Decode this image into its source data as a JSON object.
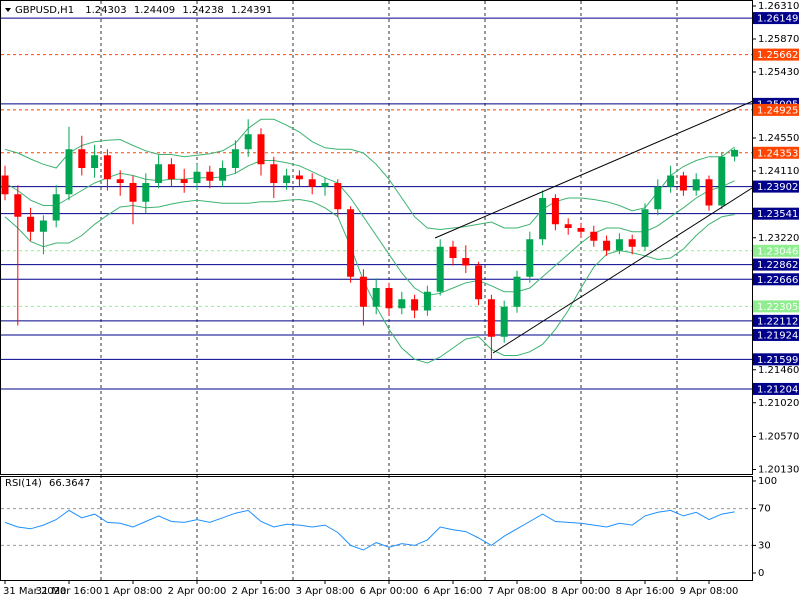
{
  "chart_data": [
    {
      "type": "candlestick",
      "title": "GBPUSD,H1",
      "categories": [
        "31 Mar 2020",
        null,
        null,
        null,
        null,
        "31 Mar 16:00",
        null,
        null,
        null,
        null,
        "1 Apr 08:00",
        null,
        null,
        null,
        null,
        "2 Apr 00:00",
        null,
        null,
        null,
        null,
        "2 Apr 16:00",
        null,
        null,
        null,
        null,
        "3 Apr 08:00",
        null,
        null,
        null,
        null,
        "6 Apr 00:00",
        null,
        null,
        null,
        null,
        "6 Apr 16:00",
        null,
        null,
        null,
        null,
        "7 Apr 08:00",
        null,
        null,
        null,
        null,
        "8 Apr 00:00",
        null,
        null,
        null,
        null,
        "8 Apr 16:00",
        null,
        null,
        null,
        null,
        "9 Apr 08:00",
        null,
        null
      ],
      "open": [
        1.2405,
        1.238,
        1.235,
        1.233,
        1.2345,
        1.238,
        1.244,
        1.2415,
        1.2432,
        1.24,
        1.2395,
        1.237,
        1.2395,
        1.242,
        1.24,
        1.2395,
        1.241,
        1.2398,
        1.2415,
        1.244,
        1.246,
        1.242,
        1.2395,
        1.2405,
        1.24,
        1.239,
        1.2395,
        1.236,
        1.227,
        1.223,
        1.2255,
        1.2228,
        1.224,
        1.2225,
        1.225,
        1.231,
        1.2295,
        1.2285,
        1.224,
        1.219,
        1.223,
        1.227,
        1.232,
        1.2375,
        1.234,
        1.2335,
        1.233,
        1.2318,
        1.2305,
        1.232,
        1.231,
        1.236,
        1.239,
        1.2405,
        1.2385,
        1.24,
        1.2365,
        1.24303
      ],
      "high": [
        1.2418,
        1.2392,
        1.2362,
        1.2352,
        1.2392,
        1.247,
        1.2458,
        1.2446,
        1.244,
        1.2412,
        1.2405,
        1.2408,
        1.2432,
        1.2428,
        1.2414,
        1.242,
        1.2418,
        1.2425,
        1.2452,
        1.248,
        1.2468,
        1.243,
        1.2414,
        1.2412,
        1.2408,
        1.2402,
        1.24,
        1.2364,
        1.228,
        1.2268,
        1.2262,
        1.225,
        1.2246,
        1.2258,
        1.232,
        1.2318,
        1.2312,
        1.229,
        1.2246,
        1.2238,
        1.2278,
        1.233,
        1.2385,
        1.238,
        1.2348,
        1.2342,
        1.2338,
        1.2325,
        1.2328,
        1.2326,
        1.2368,
        1.24,
        1.2418,
        1.241,
        1.2408,
        1.2405,
        1.2436,
        1.24409
      ],
      "low": [
        1.2372,
        1.2205,
        1.2318,
        1.23,
        1.2336,
        1.2372,
        1.2405,
        1.2402,
        1.2385,
        1.2378,
        1.234,
        1.2355,
        1.2388,
        1.239,
        1.2382,
        1.2386,
        1.2388,
        1.239,
        1.2408,
        1.243,
        1.2405,
        1.2375,
        1.2386,
        1.239,
        1.238,
        1.2378,
        1.235,
        1.2262,
        1.2205,
        1.222,
        1.2218,
        1.222,
        1.2215,
        1.2218,
        1.2245,
        1.2285,
        1.2275,
        1.2232,
        1.216,
        1.2182,
        1.2222,
        1.2262,
        1.2312,
        1.2332,
        1.2326,
        1.2322,
        1.231,
        1.2298,
        1.23,
        1.23,
        1.2305,
        1.2352,
        1.2382,
        1.2378,
        1.2378,
        1.2358,
        1.236,
        1.24238
      ],
      "close": [
        1.238,
        1.235,
        1.233,
        1.2345,
        1.238,
        1.244,
        1.2415,
        1.2432,
        1.24,
        1.2395,
        1.237,
        1.2395,
        1.242,
        1.24,
        1.2395,
        1.241,
        1.2398,
        1.2415,
        1.244,
        1.246,
        1.242,
        1.2395,
        1.2405,
        1.24,
        1.239,
        1.2395,
        1.236,
        1.227,
        1.223,
        1.2255,
        1.2228,
        1.224,
        1.2225,
        1.225,
        1.231,
        1.2295,
        1.2285,
        1.224,
        1.219,
        1.223,
        1.227,
        1.232,
        1.2375,
        1.234,
        1.2335,
        1.233,
        1.2318,
        1.2305,
        1.232,
        1.231,
        1.236,
        1.239,
        1.2405,
        1.2385,
        1.24,
        1.2365,
        1.243,
        1.24391
      ],
      "up_color": "#00a651",
      "down_color": "#ff0000",
      "bands": {
        "color": "#3cb371",
        "upper": [
          1.244,
          1.2435,
          1.2427,
          1.242,
          1.2415,
          1.2435,
          1.2445,
          1.245,
          1.2452,
          1.2453,
          1.2445,
          1.2438,
          1.2433,
          1.2433,
          1.243,
          1.2432,
          1.2434,
          1.2438,
          1.2448,
          1.2468,
          1.248,
          1.248,
          1.2472,
          1.2463,
          1.245,
          1.2442,
          1.244,
          1.244,
          1.2435,
          1.242,
          1.24,
          1.2375,
          1.235,
          1.2335,
          1.2333,
          1.2335,
          1.2337,
          1.234,
          1.2343,
          1.2335,
          1.2335,
          1.234,
          1.236,
          1.237,
          1.2375,
          1.2375,
          1.2373,
          1.237,
          1.2365,
          1.2358,
          1.2362,
          1.2383,
          1.2405,
          1.2417,
          1.2425,
          1.243,
          1.243,
          1.2443
        ],
        "middle": [
          1.2395,
          1.2385,
          1.2372,
          1.2365,
          1.2365,
          1.2375,
          1.2385,
          1.2395,
          1.2402,
          1.2408,
          1.2405,
          1.24,
          1.2398,
          1.24,
          1.24,
          1.2402,
          1.2402,
          1.2403,
          1.2408,
          1.2418,
          1.2425,
          1.2425,
          1.2422,
          1.2418,
          1.241,
          1.2402,
          1.2395,
          1.2375,
          1.235,
          1.2325,
          1.23,
          1.2275,
          1.2255,
          1.2245,
          1.2248,
          1.2255,
          1.2262,
          1.2265,
          1.2258,
          1.225,
          1.225,
          1.2255,
          1.227,
          1.2285,
          1.23,
          1.2315,
          1.2328,
          1.2335,
          1.2335,
          1.233,
          1.233,
          1.2338,
          1.235,
          1.2362,
          1.2375,
          1.2385,
          1.239,
          1.2398
        ],
        "lower": [
          1.235,
          1.2335,
          1.2317,
          1.231,
          1.2315,
          1.2315,
          1.2325,
          1.234,
          1.2352,
          1.2363,
          1.2365,
          1.2362,
          1.2363,
          1.2367,
          1.237,
          1.2372,
          1.237,
          1.2368,
          1.2368,
          1.2368,
          1.237,
          1.237,
          1.2372,
          1.2373,
          1.237,
          1.2362,
          1.235,
          1.231,
          1.2265,
          1.223,
          1.22,
          1.2175,
          1.216,
          1.2155,
          1.2163,
          1.2175,
          1.2187,
          1.219,
          1.2173,
          1.2165,
          1.2165,
          1.217,
          1.218,
          1.22,
          1.2225,
          1.2255,
          1.2283,
          1.23,
          1.2305,
          1.2302,
          1.2298,
          1.2293,
          1.2295,
          1.2307,
          1.2325,
          1.234,
          1.235,
          1.2353
        ]
      },
      "levels": [
        {
          "value": 1.26149,
          "color": "#00008b",
          "dash": false
        },
        {
          "value": 1.25662,
          "color": "#ff4500",
          "dash": true
        },
        {
          "value": 1.25005,
          "color": "#00008b",
          "dash": false
        },
        {
          "value": 1.24925,
          "color": "#ff4500",
          "dash": true
        },
        {
          "value": 1.24353,
          "color": "#ff4500",
          "dash": true
        },
        {
          "value": 1.23902,
          "color": "#00008b",
          "dash": false
        },
        {
          "value": 1.23541,
          "color": "#00008b",
          "dash": false
        },
        {
          "value": 1.23046,
          "color": "#90ee90",
          "dash": true
        },
        {
          "value": 1.22862,
          "color": "#00008b",
          "dash": false
        },
        {
          "value": 1.22666,
          "color": "#00008b",
          "dash": false
        },
        {
          "value": 1.22305,
          "color": "#90ee90",
          "dash": true
        },
        {
          "value": 1.22112,
          "color": "#00008b",
          "dash": false
        },
        {
          "value": 1.21924,
          "color": "#00008b",
          "dash": false
        },
        {
          "value": 1.21599,
          "color": "#00008b",
          "dash": false
        },
        {
          "value": 1.21204,
          "color": "#00008b",
          "dash": false
        }
      ],
      "ylim": [
        1.2007,
        1.2639
      ],
      "yticks": [
        {
          "value": 1.2631,
          "label": "1.26310"
        },
        {
          "value": 1.2587,
          "label": "1.25870"
        },
        {
          "value": 1.2543,
          "label": "1.25430"
        },
        {
          "value": 1.2455,
          "label": "1.24550"
        },
        {
          "value": 1.2411,
          "label": "1.24110"
        },
        {
          "value": 1.2322,
          "label": "1.23220"
        },
        {
          "value": 1.2146,
          "label": "1.21460"
        },
        {
          "value": 1.2102,
          "label": "1.21020"
        },
        {
          "value": 1.2057,
          "label": "1.20570"
        },
        {
          "value": 1.2013,
          "label": "1.20130"
        }
      ]
    },
    {
      "type": "line",
      "title": "RSI(14)",
      "series": [
        {
          "color": "#1e90ff",
          "values": [
            55,
            50,
            48,
            52,
            58,
            68,
            60,
            64,
            55,
            54,
            50,
            56,
            62,
            56,
            55,
            58,
            55,
            60,
            65,
            68,
            56,
            50,
            53,
            52,
            50,
            52,
            44,
            30,
            25,
            33,
            28,
            32,
            30,
            36,
            50,
            47,
            45,
            38,
            30,
            40,
            48,
            56,
            64,
            56,
            55,
            54,
            52,
            50,
            54,
            52,
            62,
            66,
            68,
            62,
            66,
            58,
            64,
            66.3647
          ]
        }
      ],
      "ylim": [
        -7.6,
        105.4
      ],
      "yticks": [
        100,
        70,
        30,
        0
      ],
      "levels": [
        70,
        30
      ]
    }
  ]
}
